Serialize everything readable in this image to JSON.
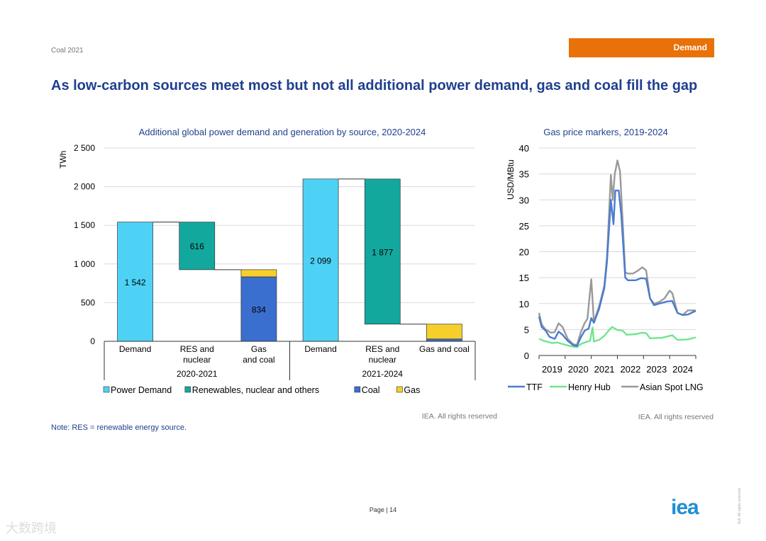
{
  "header": {
    "report": "Coal 2021",
    "section": "Demand"
  },
  "title": "As low-carbon sources meet most but not all additional power demand, gas and coal fill the gap",
  "note": "Note: RES = renewable energy source.",
  "page": "Page | 14",
  "logo": "iea",
  "side_text": "IEA. All rights reserved",
  "watermark": "大数跨境",
  "colors": {
    "demand": "#4dd2f5",
    "renewables": "#13a89e",
    "coal": "#3b6fcf",
    "gas": "#f7cf2a",
    "ttf": "#4a7bd0",
    "henry": "#6ee68c",
    "asian": "#999999",
    "title": "#1f3f8f"
  },
  "chart_data": [
    {
      "type": "bar",
      "subtype": "waterfall",
      "title": "Additional global power demand and generation by source, 2020-2024",
      "ylabel": "TWh",
      "ylim": [
        0,
        2500
      ],
      "yticks": [
        "0",
        "500",
        "1 000",
        "1 500",
        "2 000",
        "2 500"
      ],
      "groups": [
        {
          "label": "2020-2021",
          "categories": [
            {
              "label": "Demand",
              "base": 0,
              "segments": [
                {
                  "series": "Power Demand",
                  "value": 1542
                }
              ],
              "data_label": "1 542"
            },
            {
              "label": "RES and nuclear",
              "base": 926,
              "segments": [
                {
                  "series": "Renewables, nuclear and others",
                  "value": 616
                }
              ],
              "data_label": "616"
            },
            {
              "label": "Gas and coal",
              "base": 0,
              "segments": [
                {
                  "series": "Coal",
                  "value": 834
                },
                {
                  "series": "Gas",
                  "value": 92
                }
              ],
              "data_label": "834"
            }
          ]
        },
        {
          "label": "2021-2024",
          "categories": [
            {
              "label": "Demand",
              "base": 0,
              "segments": [
                {
                  "series": "Power Demand",
                  "value": 2099
                }
              ],
              "data_label": "2 099"
            },
            {
              "label": "RES and nuclear",
              "base": 222,
              "segments": [
                {
                  "series": "Renewables, nuclear and others",
                  "value": 1877
                }
              ],
              "data_label": "1 877"
            },
            {
              "label": "Gas and coal",
              "base": 0,
              "segments": [
                {
                  "series": "Coal",
                  "value": 30
                },
                {
                  "series": "Gas",
                  "value": 192
                }
              ],
              "data_label": ""
            }
          ]
        }
      ],
      "legend": [
        "Power Demand",
        "Renewables, nuclear and others",
        "Coal",
        "Gas"
      ],
      "source": "IEA. All rights reserved"
    },
    {
      "type": "line",
      "title": "Gas price markers, 2019-2024",
      "ylabel": "USD/MBtu",
      "ylim": [
        0,
        40
      ],
      "xlim": [
        2019,
        2025
      ],
      "yticks": [
        "0",
        "5",
        "10",
        "15",
        "20",
        "25",
        "30",
        "35",
        "40"
      ],
      "xticks": [
        "2019",
        "2020",
        "2021",
        "2022",
        "2023",
        "2024"
      ],
      "series": [
        {
          "name": "TTF",
          "color": "#4a7bd0",
          "points": [
            [
              2019,
              7.5
            ],
            [
              2019.1,
              5.5
            ],
            [
              2019.25,
              4.8
            ],
            [
              2019.4,
              3.6
            ],
            [
              2019.6,
              3.2
            ],
            [
              2019.75,
              4.6
            ],
            [
              2019.9,
              4
            ],
            [
              2020.1,
              2.8
            ],
            [
              2020.3,
              2
            ],
            [
              2020.45,
              1.8
            ],
            [
              2020.6,
              3.5
            ],
            [
              2020.75,
              4.8
            ],
            [
              2020.9,
              5.2
            ],
            [
              2021,
              7.2
            ],
            [
              2021.1,
              6.3
            ],
            [
              2021.3,
              9
            ],
            [
              2021.5,
              13
            ],
            [
              2021.6,
              18
            ],
            [
              2021.75,
              30
            ],
            [
              2021.85,
              25.3
            ],
            [
              2021.92,
              31.8
            ],
            [
              2022.05,
              31.8
            ],
            [
              2022.15,
              27
            ],
            [
              2022.3,
              15
            ],
            [
              2022.4,
              14.5
            ],
            [
              2022.7,
              14.5
            ],
            [
              2022.9,
              14.9
            ],
            [
              2023.1,
              14.8
            ],
            [
              2023.25,
              11
            ],
            [
              2023.4,
              9.7
            ],
            [
              2023.6,
              10
            ],
            [
              2023.9,
              10.4
            ],
            [
              2024.1,
              10.5
            ],
            [
              2024.3,
              8.2
            ],
            [
              2024.5,
              7.8
            ],
            [
              2024.7,
              7.9
            ],
            [
              2025,
              8.6
            ]
          ]
        },
        {
          "name": "Henry Hub",
          "color": "#6ee68c",
          "points": [
            [
              2019,
              3.2
            ],
            [
              2019.2,
              2.8
            ],
            [
              2019.5,
              2.4
            ],
            [
              2019.7,
              2.5
            ],
            [
              2019.9,
              2.2
            ],
            [
              2020.2,
              1.8
            ],
            [
              2020.45,
              1.6
            ],
            [
              2020.6,
              2.2
            ],
            [
              2020.8,
              2.6
            ],
            [
              2020.95,
              2.8
            ],
            [
              2021.05,
              5.4
            ],
            [
              2021.1,
              2.7
            ],
            [
              2021.3,
              3
            ],
            [
              2021.5,
              3.8
            ],
            [
              2021.7,
              5
            ],
            [
              2021.8,
              5.5
            ],
            [
              2022,
              4.9
            ],
            [
              2022.2,
              4.8
            ],
            [
              2022.35,
              4
            ],
            [
              2022.7,
              4.1
            ],
            [
              2022.95,
              4.4
            ],
            [
              2023.1,
              4.3
            ],
            [
              2023.25,
              3.3
            ],
            [
              2023.7,
              3.4
            ],
            [
              2024.1,
              3.9
            ],
            [
              2024.3,
              3
            ],
            [
              2024.7,
              3.1
            ],
            [
              2025,
              3.5
            ]
          ]
        },
        {
          "name": "Asian Spot LNG",
          "color": "#999999",
          "points": [
            [
              2019,
              8.2
            ],
            [
              2019.1,
              6
            ],
            [
              2019.25,
              5
            ],
            [
              2019.45,
              4.4
            ],
            [
              2019.6,
              4.5
            ],
            [
              2019.75,
              6.2
            ],
            [
              2019.9,
              5.5
            ],
            [
              2020.1,
              3.2
            ],
            [
              2020.3,
              2.2
            ],
            [
              2020.45,
              2
            ],
            [
              2020.6,
              4.5
            ],
            [
              2020.75,
              6.3
            ],
            [
              2020.85,
              7
            ],
            [
              2021,
              14.7
            ],
            [
              2021.1,
              6.5
            ],
            [
              2021.3,
              9.5
            ],
            [
              2021.5,
              13.5
            ],
            [
              2021.6,
              19
            ],
            [
              2021.75,
              34.8
            ],
            [
              2021.82,
              30
            ],
            [
              2021.9,
              35
            ],
            [
              2022,
              37.6
            ],
            [
              2022.1,
              35.5
            ],
            [
              2022.2,
              26
            ],
            [
              2022.3,
              16
            ],
            [
              2022.4,
              15.8
            ],
            [
              2022.6,
              15.8
            ],
            [
              2022.8,
              16.4
            ],
            [
              2022.95,
              17
            ],
            [
              2023.1,
              16.4
            ],
            [
              2023.25,
              11
            ],
            [
              2023.4,
              10
            ],
            [
              2023.6,
              10.3
            ],
            [
              2023.8,
              11
            ],
            [
              2024,
              12.5
            ],
            [
              2024.1,
              12
            ],
            [
              2024.3,
              8.2
            ],
            [
              2024.5,
              7.8
            ],
            [
              2024.7,
              8.7
            ],
            [
              2025,
              8.7
            ]
          ]
        }
      ],
      "source": "IEA. All rights reserved"
    }
  ]
}
